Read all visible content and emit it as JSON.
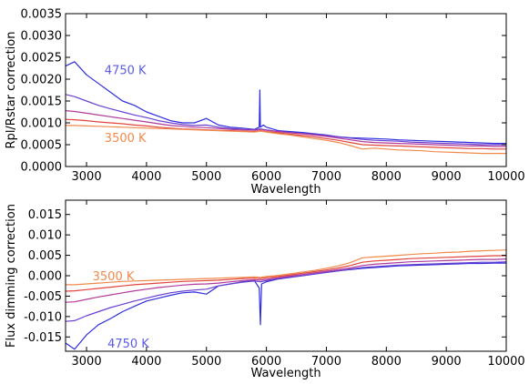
{
  "chart_data": [
    {
      "type": "line",
      "xlabel": "Wavelength",
      "ylabel": "Rpl/Rstar correction",
      "xlim": [
        2650,
        10000
      ],
      "ylim": [
        0,
        0.0035
      ],
      "xticks": [
        "3000",
        "4000",
        "5000",
        "6000",
        "7000",
        "8000",
        "9000",
        "10000"
      ],
      "yticks": [
        "0.0000",
        "0.0005",
        "0.0010",
        "0.0015",
        "0.0020",
        "0.0025",
        "0.0030",
        "0.0035"
      ],
      "grid": false,
      "annotations": [
        {
          "text": "4750 K",
          "x": 3300,
          "y": 0.00222,
          "color": "#5B5BE6"
        },
        {
          "text": "3500 K",
          "x": 3300,
          "y": 0.00067,
          "color": "#F08A4B"
        }
      ],
      "series": [
        {
          "color": "#2E2EDC",
          "x": [
            2650,
            2800,
            3000,
            3200,
            3400,
            3600,
            3800,
            4000,
            4200,
            4400,
            4600,
            4800,
            5000,
            5200,
            5400,
            5600,
            5800,
            5880,
            5890,
            5900,
            5950,
            6000,
            6200,
            6400,
            6600,
            6800,
            7000,
            7200,
            7400,
            7600,
            7800,
            8000,
            8200,
            8400,
            8600,
            8800,
            9000,
            9200,
            9400,
            9600,
            9800,
            10000
          ],
          "y": [
            0.0023,
            0.0024,
            0.0021,
            0.0019,
            0.0017,
            0.0015,
            0.0014,
            0.00125,
            0.00115,
            0.00105,
            0.001,
            0.001,
            0.0011,
            0.00095,
            0.0009,
            0.00088,
            0.00085,
            0.0009,
            0.00175,
            0.0009,
            0.00095,
            0.0009,
            0.00082,
            0.0008,
            0.00078,
            0.00075,
            0.00072,
            0.00068,
            0.00066,
            0.00065,
            0.00064,
            0.00063,
            0.00061,
            0.0006,
            0.00059,
            0.00058,
            0.00057,
            0.00056,
            0.00055,
            0.00054,
            0.00053,
            0.00053
          ]
        },
        {
          "color": "#6A3FD0",
          "x": [
            2650,
            2800,
            3000,
            3200,
            3400,
            3600,
            3800,
            4000,
            4200,
            4400,
            4600,
            4800,
            5000,
            5200,
            5400,
            5600,
            5800,
            5900,
            6000,
            6200,
            6400,
            6600,
            6800,
            7000,
            7200,
            7400,
            7600,
            7800,
            8000,
            8200,
            8400,
            8600,
            8800,
            9000,
            9200,
            9400,
            9600,
            9800,
            10000
          ],
          "y": [
            0.00165,
            0.0016,
            0.0015,
            0.0014,
            0.00132,
            0.00125,
            0.00118,
            0.00112,
            0.00105,
            0.001,
            0.00096,
            0.00094,
            0.00095,
            0.0009,
            0.00087,
            0.00085,
            0.00084,
            0.00086,
            0.00084,
            0.0008,
            0.00078,
            0.00076,
            0.00074,
            0.00071,
            0.00068,
            0.00065,
            0.00062,
            0.0006,
            0.00059,
            0.00058,
            0.00056,
            0.00055,
            0.00054,
            0.00053,
            0.00052,
            0.00051,
            0.0005,
            0.0005,
            0.0005
          ]
        },
        {
          "color": "#B03A9A",
          "x": [
            2650,
            2800,
            3000,
            3200,
            3400,
            3600,
            3800,
            4000,
            4200,
            4400,
            4600,
            4800,
            5000,
            5200,
            5400,
            5600,
            5800,
            5900,
            6000,
            6200,
            6400,
            6600,
            6800,
            7000,
            7200,
            7400,
            7600,
            7800,
            8000,
            8200,
            8400,
            8600,
            8800,
            9000,
            9200,
            9400,
            9600,
            9800,
            10000
          ],
          "y": [
            0.00128,
            0.00126,
            0.00122,
            0.00118,
            0.00114,
            0.0011,
            0.00106,
            0.00102,
            0.00098,
            0.00094,
            0.00092,
            0.0009,
            0.00089,
            0.00087,
            0.00085,
            0.00084,
            0.00083,
            0.00085,
            0.00083,
            0.0008,
            0.00077,
            0.00075,
            0.00072,
            0.00069,
            0.00065,
            0.00061,
            0.00057,
            0.00055,
            0.00054,
            0.00053,
            0.00052,
            0.00051,
            0.0005,
            0.00049,
            0.00048,
            0.00047,
            0.00047,
            0.00046,
            0.00046
          ]
        },
        {
          "color": "#E0443C",
          "x": [
            2650,
            2800,
            3000,
            3200,
            3400,
            3600,
            3800,
            4000,
            4200,
            4400,
            4600,
            4800,
            5000,
            5200,
            5400,
            5600,
            5800,
            5900,
            6000,
            6200,
            6400,
            6600,
            6800,
            7000,
            7200,
            7400,
            7600,
            7800,
            8000,
            8200,
            8400,
            8600,
            8800,
            9000,
            9200,
            9400,
            9600,
            9800,
            10000
          ],
          "y": [
            0.00108,
            0.00107,
            0.00105,
            0.00102,
            0.001,
            0.00098,
            0.00095,
            0.00093,
            0.0009,
            0.00088,
            0.00086,
            0.00085,
            0.00084,
            0.00083,
            0.00082,
            0.00081,
            0.0008,
            0.00082,
            0.0008,
            0.00077,
            0.00074,
            0.00071,
            0.00068,
            0.00064,
            0.0006,
            0.00055,
            0.0005,
            0.00049,
            0.00048,
            0.00047,
            0.00046,
            0.00045,
            0.00044,
            0.00043,
            0.00042,
            0.00041,
            0.00041,
            0.0004,
            0.0004
          ]
        },
        {
          "color": "#F08A4B",
          "x": [
            2650,
            2800,
            3000,
            3200,
            3400,
            3600,
            3800,
            4000,
            4200,
            4400,
            4600,
            4800,
            5000,
            5200,
            5400,
            5600,
            5800,
            5900,
            6000,
            6200,
            6400,
            6600,
            6800,
            7000,
            7200,
            7400,
            7600,
            7800,
            8000,
            8200,
            8400,
            8600,
            8800,
            9000,
            9200,
            9400,
            9600,
            9800,
            10000
          ],
          "y": [
            0.00094,
            0.00094,
            0.00093,
            0.00092,
            0.00091,
            0.0009,
            0.00089,
            0.00088,
            0.00087,
            0.00086,
            0.00085,
            0.00084,
            0.00083,
            0.00082,
            0.00081,
            0.0008,
            0.00079,
            0.00081,
            0.00079,
            0.00075,
            0.00072,
            0.00068,
            0.00064,
            0.0006,
            0.00055,
            0.00048,
            0.0004,
            0.00042,
            0.0004,
            0.00038,
            0.00037,
            0.00036,
            0.00034,
            0.00033,
            0.00032,
            0.00031,
            0.0003,
            0.0003,
            0.0003
          ]
        }
      ]
    },
    {
      "type": "line",
      "xlabel": "Wavelength",
      "ylabel": "Flux dimming correction",
      "xlim": [
        2650,
        10000
      ],
      "ylim": [
        -0.0185,
        0.0185
      ],
      "xticks": [
        "3000",
        "4000",
        "5000",
        "6000",
        "7000",
        "8000",
        "9000",
        "10000"
      ],
      "yticks": [
        "-0.015",
        "-0.010",
        "-0.005",
        "0.000",
        "0.005",
        "0.010",
        "0.015"
      ],
      "grid": false,
      "annotations": [
        {
          "text": "3500 K",
          "x": 3100,
          "y": 0.0,
          "color": "#F08A4B"
        },
        {
          "text": "4750 K",
          "x": 3350,
          "y": -0.0165,
          "color": "#5B5BE6"
        }
      ],
      "series": [
        {
          "color": "#2E2EDC",
          "x": [
            2650,
            2800,
            3000,
            3200,
            3400,
            3600,
            3800,
            4000,
            4200,
            4400,
            4600,
            4800,
            5000,
            5200,
            5400,
            5600,
            5800,
            5880,
            5900,
            5920,
            6000,
            6200,
            6400,
            6600,
            6800,
            7000,
            7200,
            7400,
            7600,
            7800,
            8000,
            8200,
            8400,
            8600,
            8800,
            9000,
            9200,
            9400,
            9600,
            9800,
            10000
          ],
          "y": [
            -0.0165,
            -0.018,
            -0.0145,
            -0.012,
            -0.0105,
            -0.0088,
            -0.0075,
            -0.0062,
            -0.0055,
            -0.0048,
            -0.0042,
            -0.004,
            -0.0045,
            -0.0025,
            -0.002,
            -0.0015,
            -0.0012,
            -0.003,
            -0.012,
            -0.002,
            -0.0015,
            -0.0008,
            -0.0004,
            0.0,
            0.0004,
            0.0008,
            0.0012,
            0.0015,
            0.0018,
            0.002,
            0.0022,
            0.0024,
            0.0025,
            0.0026,
            0.0027,
            0.0028,
            0.0029,
            0.003,
            0.003,
            0.0031,
            0.0031
          ]
        },
        {
          "color": "#6A3FD0",
          "x": [
            2650,
            2800,
            3000,
            3200,
            3400,
            3600,
            3800,
            4000,
            4200,
            4400,
            4600,
            4800,
            5000,
            5200,
            5400,
            5600,
            5800,
            5900,
            6000,
            6200,
            6400,
            6600,
            6800,
            7000,
            7200,
            7400,
            7600,
            7800,
            8000,
            8200,
            8400,
            8600,
            8800,
            9000,
            9200,
            9400,
            9600,
            9800,
            10000
          ],
          "y": [
            -0.0112,
            -0.011,
            -0.0098,
            -0.0088,
            -0.0078,
            -0.007,
            -0.0062,
            -0.0055,
            -0.0048,
            -0.0042,
            -0.0038,
            -0.0035,
            -0.0033,
            -0.0025,
            -0.002,
            -0.0016,
            -0.0013,
            -0.0015,
            -0.0012,
            -0.0007,
            -0.0003,
            0.0,
            0.0004,
            0.0008,
            0.0012,
            0.0016,
            0.002,
            0.0022,
            0.0024,
            0.0026,
            0.0027,
            0.0028,
            0.0029,
            0.003,
            0.0031,
            0.0032,
            0.0033,
            0.0033,
            0.0034
          ]
        },
        {
          "color": "#B03A9A",
          "x": [
            2650,
            2800,
            3000,
            3200,
            3400,
            3600,
            3800,
            4000,
            4200,
            4400,
            4600,
            4800,
            5000,
            5200,
            5400,
            5600,
            5800,
            5900,
            6000,
            6200,
            6400,
            6600,
            6800,
            7000,
            7200,
            7400,
            7600,
            7800,
            8000,
            8200,
            8400,
            8600,
            8800,
            9000,
            9200,
            9400,
            9600,
            9800,
            10000
          ],
          "y": [
            -0.0065,
            -0.0064,
            -0.0058,
            -0.0052,
            -0.0047,
            -0.0042,
            -0.0037,
            -0.0033,
            -0.0029,
            -0.0026,
            -0.0023,
            -0.0021,
            -0.002,
            -0.0018,
            -0.0015,
            -0.0012,
            -0.001,
            -0.0011,
            -0.0009,
            -0.0005,
            -0.0001,
            0.0003,
            0.0007,
            0.0011,
            0.0015,
            0.0019,
            0.0025,
            0.0028,
            0.003,
            0.0032,
            0.0034,
            0.0035,
            0.0036,
            0.0037,
            0.0038,
            0.0039,
            0.004,
            0.004,
            0.0041
          ]
        },
        {
          "color": "#E0443C",
          "x": [
            2650,
            2800,
            3000,
            3200,
            3400,
            3600,
            3800,
            4000,
            4200,
            4400,
            4600,
            4800,
            5000,
            5200,
            5400,
            5600,
            5800,
            5900,
            6000,
            6200,
            6400,
            6600,
            6800,
            7000,
            7200,
            7400,
            7600,
            7800,
            8000,
            8200,
            8400,
            8600,
            8800,
            9000,
            9200,
            9400,
            9600,
            9800,
            10000
          ],
          "y": [
            -0.0038,
            -0.0037,
            -0.0034,
            -0.0031,
            -0.0028,
            -0.0025,
            -0.0022,
            -0.002,
            -0.0018,
            -0.0016,
            -0.0014,
            -0.0013,
            -0.0012,
            -0.0011,
            -0.0009,
            -0.0007,
            -0.0006,
            -0.0007,
            -0.0005,
            -0.0002,
            0.0002,
            0.0006,
            0.001,
            0.0014,
            0.0019,
            0.0025,
            0.0033,
            0.0036,
            0.0038,
            0.004,
            0.0042,
            0.0043,
            0.0044,
            0.0045,
            0.0046,
            0.0047,
            0.0048,
            0.0049,
            0.0049
          ]
        },
        {
          "color": "#F08A4B",
          "x": [
            2650,
            2800,
            3000,
            3200,
            3400,
            3600,
            3800,
            4000,
            4200,
            4400,
            4600,
            4800,
            5000,
            5200,
            5400,
            5600,
            5800,
            5900,
            6000,
            6200,
            6400,
            6600,
            6800,
            7000,
            7200,
            7400,
            7600,
            7800,
            8000,
            8200,
            8400,
            8600,
            8800,
            9000,
            9200,
            9400,
            9600,
            9800,
            10000
          ],
          "y": [
            -0.0022,
            -0.0022,
            -0.002,
            -0.0018,
            -0.0016,
            -0.0014,
            -0.0013,
            -0.0012,
            -0.0011,
            -0.001,
            -0.0009,
            -0.0008,
            -0.0007,
            -0.0006,
            -0.0005,
            -0.0004,
            -0.0003,
            -0.0004,
            -0.0002,
            0.0001,
            0.0005,
            0.0009,
            0.0013,
            0.0018,
            0.0024,
            0.0032,
            0.0044,
            0.0046,
            0.0048,
            0.005,
            0.0052,
            0.0054,
            0.0055,
            0.0057,
            0.0058,
            0.006,
            0.0061,
            0.0062,
            0.0063
          ]
        }
      ]
    }
  ]
}
